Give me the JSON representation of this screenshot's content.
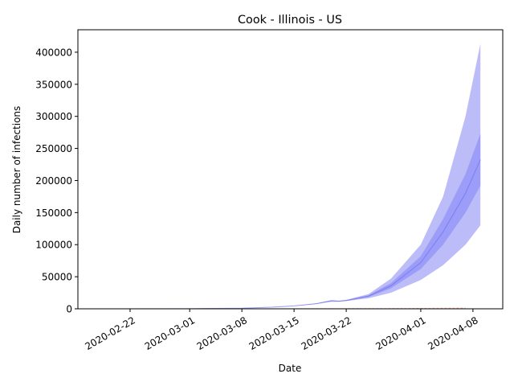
{
  "chart_data": {
    "type": "area",
    "title": "Cook - Illinois - US",
    "xlabel": "Date",
    "ylabel": "Daily number of infections",
    "x_ticks": [
      "2020-02-22",
      "2020-03-01",
      "2020-03-08",
      "2020-03-15",
      "2020-03-22",
      "2020-04-01",
      "2020-04-08"
    ],
    "y_ticks": [
      0,
      50000,
      100000,
      150000,
      200000,
      250000,
      300000,
      350000,
      400000
    ],
    "xlim": [
      "2020-02-15",
      "2020-04-12"
    ],
    "ylim": [
      0,
      435000
    ],
    "grid": false,
    "colors": {
      "outer_band": "#b8b8f8",
      "inner_band": "#9898f8",
      "median_line": "#7070f0",
      "observed_line": "#ffaaaa"
    },
    "bands": {
      "x": [
        "2020-02-20",
        "2020-03-01",
        "2020-03-08",
        "2020-03-12",
        "2020-03-15",
        "2020-03-18",
        "2020-03-20",
        "2020-03-21",
        "2020-03-22",
        "2020-03-25",
        "2020-03-28",
        "2020-04-01",
        "2020-04-04",
        "2020-04-07",
        "2020-04-09"
      ],
      "outer_lower": [
        0,
        200,
        1000,
        2500,
        4500,
        7500,
        11000,
        11000,
        12000,
        16500,
        25000,
        45000,
        68000,
        100000,
        130000
      ],
      "outer_upper": [
        0,
        200,
        1000,
        2500,
        4500,
        8500,
        13500,
        12500,
        14000,
        23000,
        47000,
        100000,
        175000,
        300000,
        413000
      ],
      "inner_lower": [
        0,
        200,
        1000,
        2500,
        4500,
        7800,
        12000,
        11500,
        12500,
        18500,
        32000,
        62000,
        100000,
        150000,
        192000
      ],
      "inner_upper": [
        0,
        200,
        1000,
        2500,
        4500,
        8200,
        13000,
        12200,
        13500,
        21000,
        40000,
        82000,
        140000,
        210000,
        273000
      ]
    },
    "observed": {
      "x": [
        "2020-02-20",
        "2020-03-01",
        "2020-03-10",
        "2020-03-21",
        "2020-03-28",
        "2020-04-01",
        "2020-04-05",
        "2020-04-07"
      ],
      "values": [
        0,
        0,
        0,
        200,
        400,
        600,
        900,
        1200
      ]
    }
  }
}
